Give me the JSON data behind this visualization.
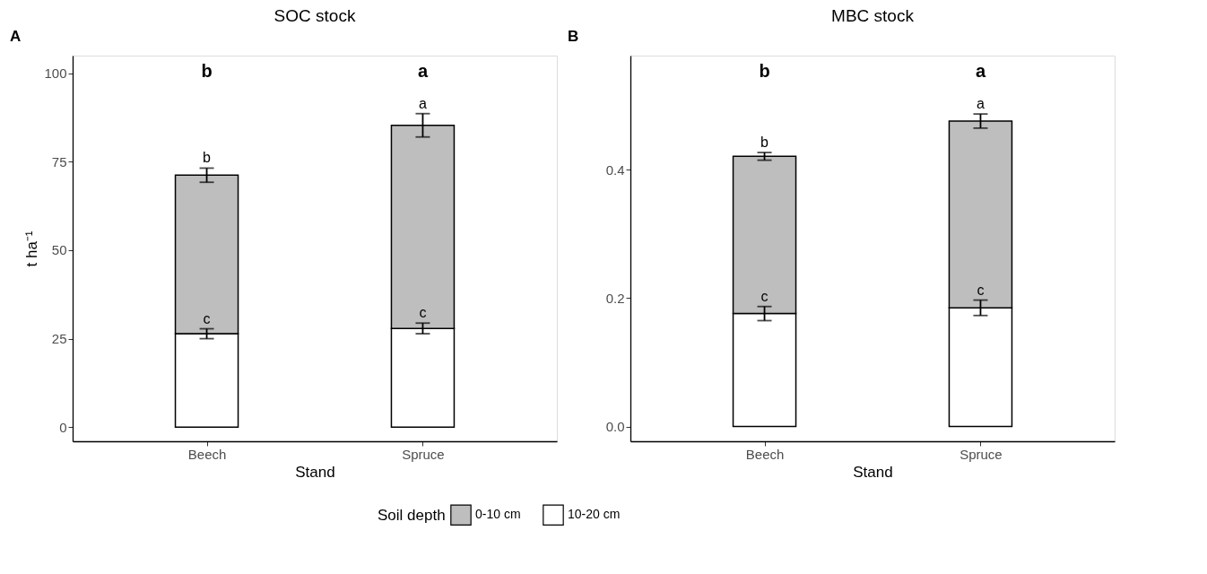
{
  "chart_data": [
    {
      "type": "bar",
      "title": "SOC stock",
      "xlabel": "Stand",
      "ylabel": "t ha⁻¹",
      "legend_title": "Soil depth",
      "legend": "bottom",
      "stacked": true,
      "grid": false,
      "categories": [
        "Beech",
        "Spruce"
      ],
      "series": [
        {
          "name": "10-20 cm",
          "color": "#ffffff",
          "values": [
            26.4,
            27.9
          ],
          "errors": [
            1.4,
            1.5
          ]
        },
        {
          "name": "0-10 cm",
          "color": "#bebebe",
          "values": [
            44.8,
            57.4
          ],
          "errors": [
            2.0,
            3.3
          ]
        }
      ],
      "ylim": [
        -4,
        105
      ],
      "yticks": [
        0,
        25,
        50,
        75,
        100
      ],
      "annotations": [
        "A",
        "b",
        "a",
        "c",
        "c",
        "b",
        "a"
      ]
    },
    {
      "type": "bar",
      "title": "MBC stock",
      "xlabel": "Stand",
      "legend": false,
      "stacked": true,
      "grid": false,
      "categories": [
        "Beech",
        "Spruce"
      ],
      "series": [
        {
          "name": "10-20 cm",
          "color": "#ffffff",
          "values": [
            0.176,
            0.185
          ],
          "errors": [
            0.011,
            0.012
          ]
        },
        {
          "name": "0-10 cm",
          "color": "#bebebe",
          "values": [
            0.245,
            0.291
          ],
          "errors": [
            0.006,
            0.011
          ]
        }
      ],
      "ylim": [
        -0.023,
        0.578
      ],
      "yticks": [
        {
          "value": 0,
          "label": "0.0"
        },
        0.2,
        0.4
      ],
      "annotations": [
        "B",
        "b",
        "a",
        "c",
        "c",
        "b",
        "a"
      ]
    }
  ]
}
